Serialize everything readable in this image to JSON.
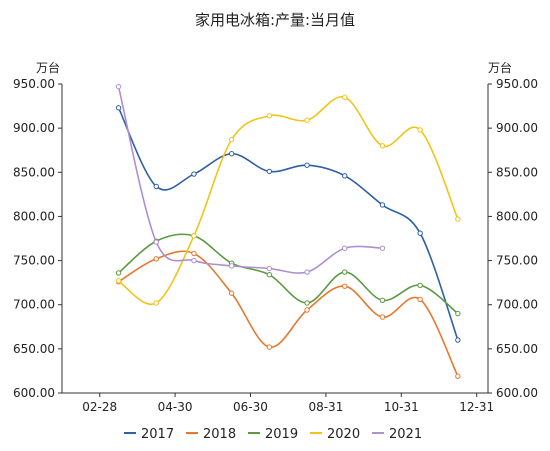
{
  "chart_data": {
    "type": "line",
    "title": "家用电冰箱:产量:当月值",
    "unit_left": "万台",
    "unit_right": "万台",
    "x_ticks": [
      "02-28",
      "04-30",
      "06-30",
      "08-31",
      "10-31",
      "12-31"
    ],
    "x_months": [
      2,
      4,
      6,
      8,
      10,
      12
    ],
    "xlim": [
      1,
      12.3
    ],
    "ylim": [
      600,
      950
    ],
    "y_ticks": [
      "600.00",
      "650.00",
      "700.00",
      "750.00",
      "800.00",
      "850.00",
      "900.00",
      "950.00"
    ],
    "smooth": true,
    "legend_position": "bottom",
    "series": [
      {
        "name": "2017",
        "color": "#2e5fa8",
        "x": [
          2.5,
          3.5,
          4.5,
          5.5,
          6.5,
          7.5,
          8.5,
          9.5,
          10.5,
          11.5,
          12.5
        ],
        "values": [
          923,
          834,
          848,
          871,
          851,
          858,
          846,
          813,
          781,
          660,
          null
        ]
      },
      {
        "name": "2018",
        "color": "#e8772e",
        "x": [
          2.5,
          3.5,
          4.5,
          5.5,
          6.5,
          7.5,
          8.5,
          9.5,
          10.5,
          11.5,
          12.5
        ],
        "values": [
          726,
          752,
          758,
          713,
          652,
          694,
          721,
          686,
          706,
          619,
          null
        ]
      },
      {
        "name": "2019",
        "color": "#5b9a41",
        "x": [
          2.5,
          3.5,
          4.5,
          5.5,
          6.5,
          7.5,
          8.5,
          9.5,
          10.5,
          11.5,
          12.5
        ],
        "values": [
          736,
          772,
          778,
          747,
          734,
          702,
          737,
          705,
          722,
          690,
          null
        ]
      },
      {
        "name": "2020",
        "color": "#f2c318",
        "x": [
          2.5,
          3.5,
          4.5,
          5.5,
          6.5,
          7.5,
          8.5,
          9.5,
          10.5,
          11.5,
          12.5
        ],
        "values": [
          727,
          702,
          778,
          887,
          914,
          909,
          935,
          880,
          898,
          797,
          null
        ]
      },
      {
        "name": "2021",
        "color": "#b08fd0",
        "x": [
          2.5,
          3.5,
          4.5,
          5.5,
          6.5,
          7.5,
          8.5,
          9.5,
          10.5,
          11.5,
          12.5
        ],
        "values": [
          947,
          771,
          750,
          744,
          741,
          737,
          764,
          764,
          null,
          null,
          null
        ]
      }
    ]
  }
}
